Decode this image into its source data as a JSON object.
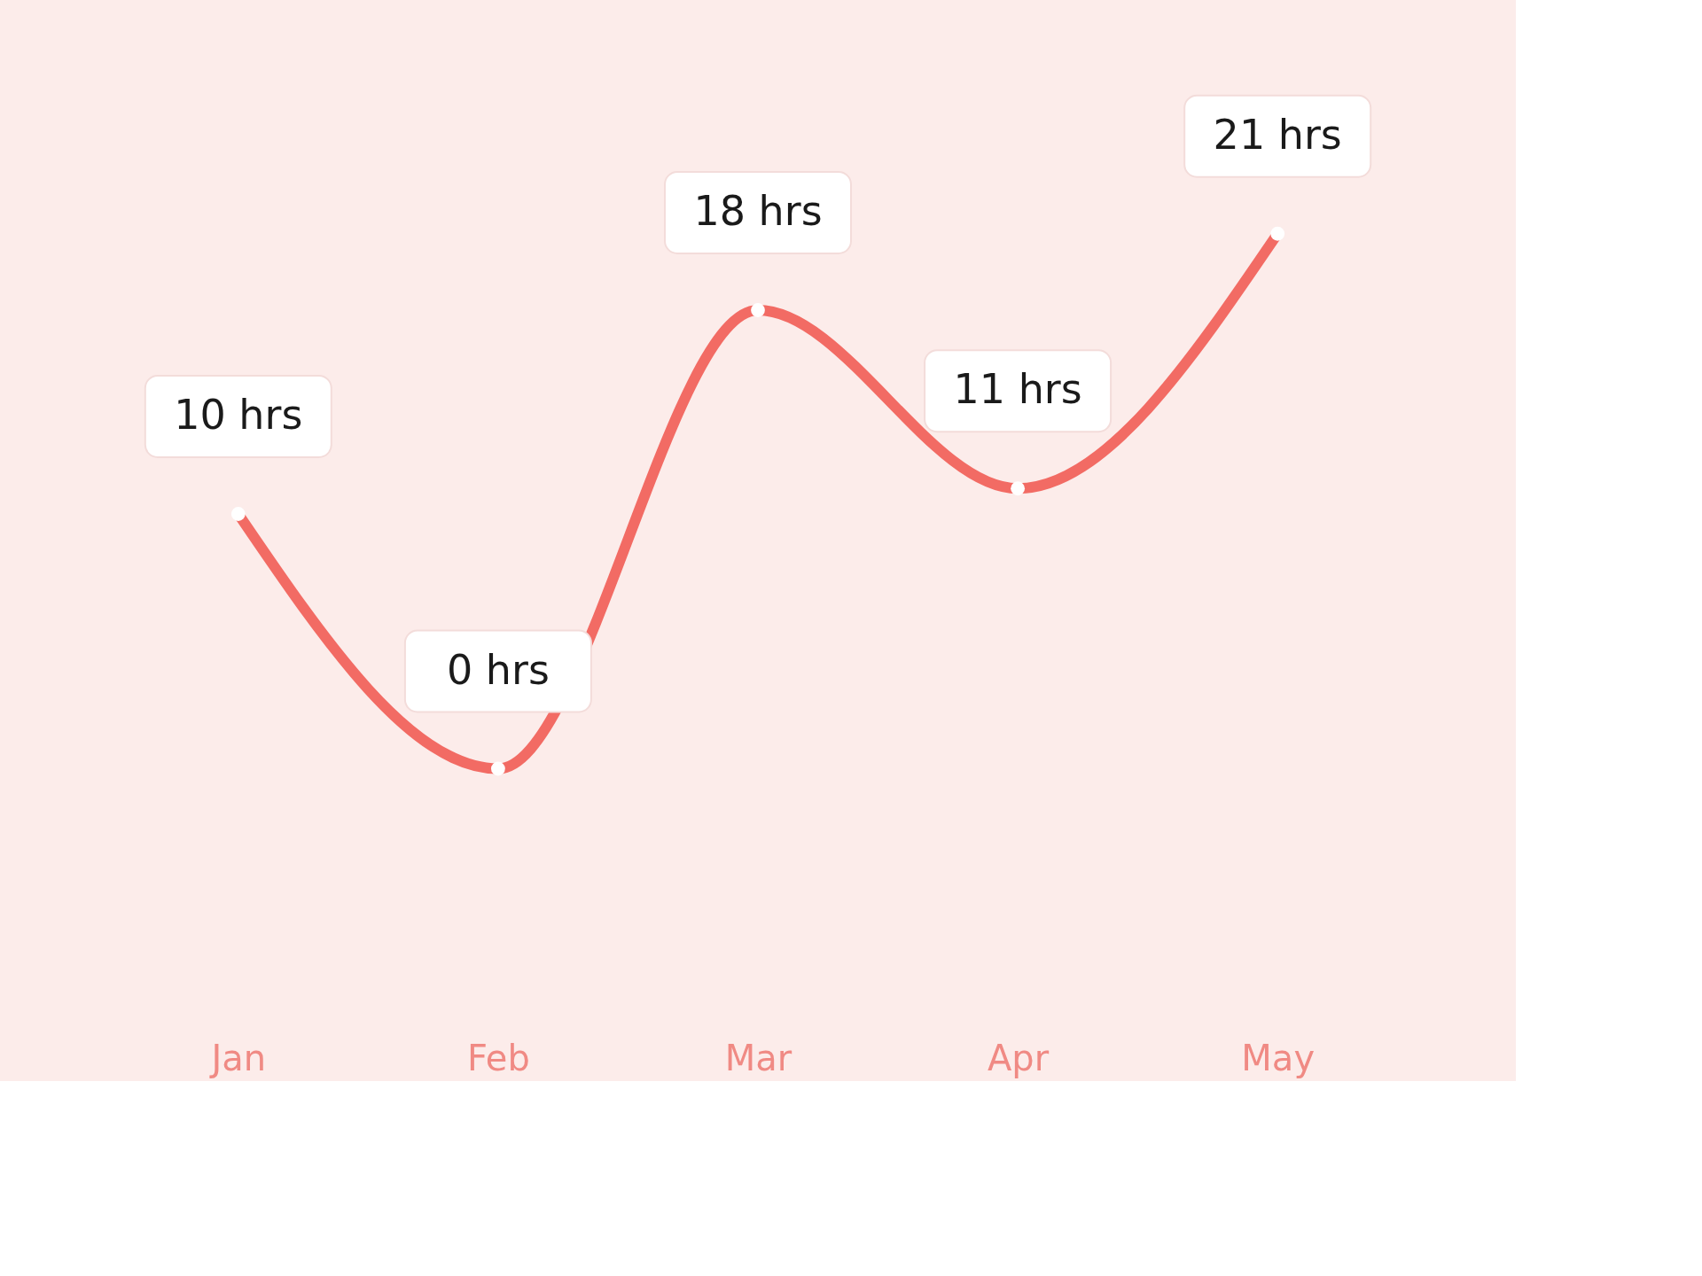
{
  "chart_data": {
    "type": "line",
    "categories": [
      "Jan",
      "Feb",
      "Mar",
      "Apr",
      "May"
    ],
    "series": [
      {
        "color": "#f26b64",
        "values": [
          10,
          0,
          18,
          11,
          21
        ],
        "value_labels": [
          "10 hrs",
          "0 hrs",
          "18 hrs",
          "11 hrs",
          "21 hrs"
        ]
      }
    ],
    "grid": false,
    "tick_labels": "x",
    "marker": "circle",
    "line_style": "solid"
  }
}
